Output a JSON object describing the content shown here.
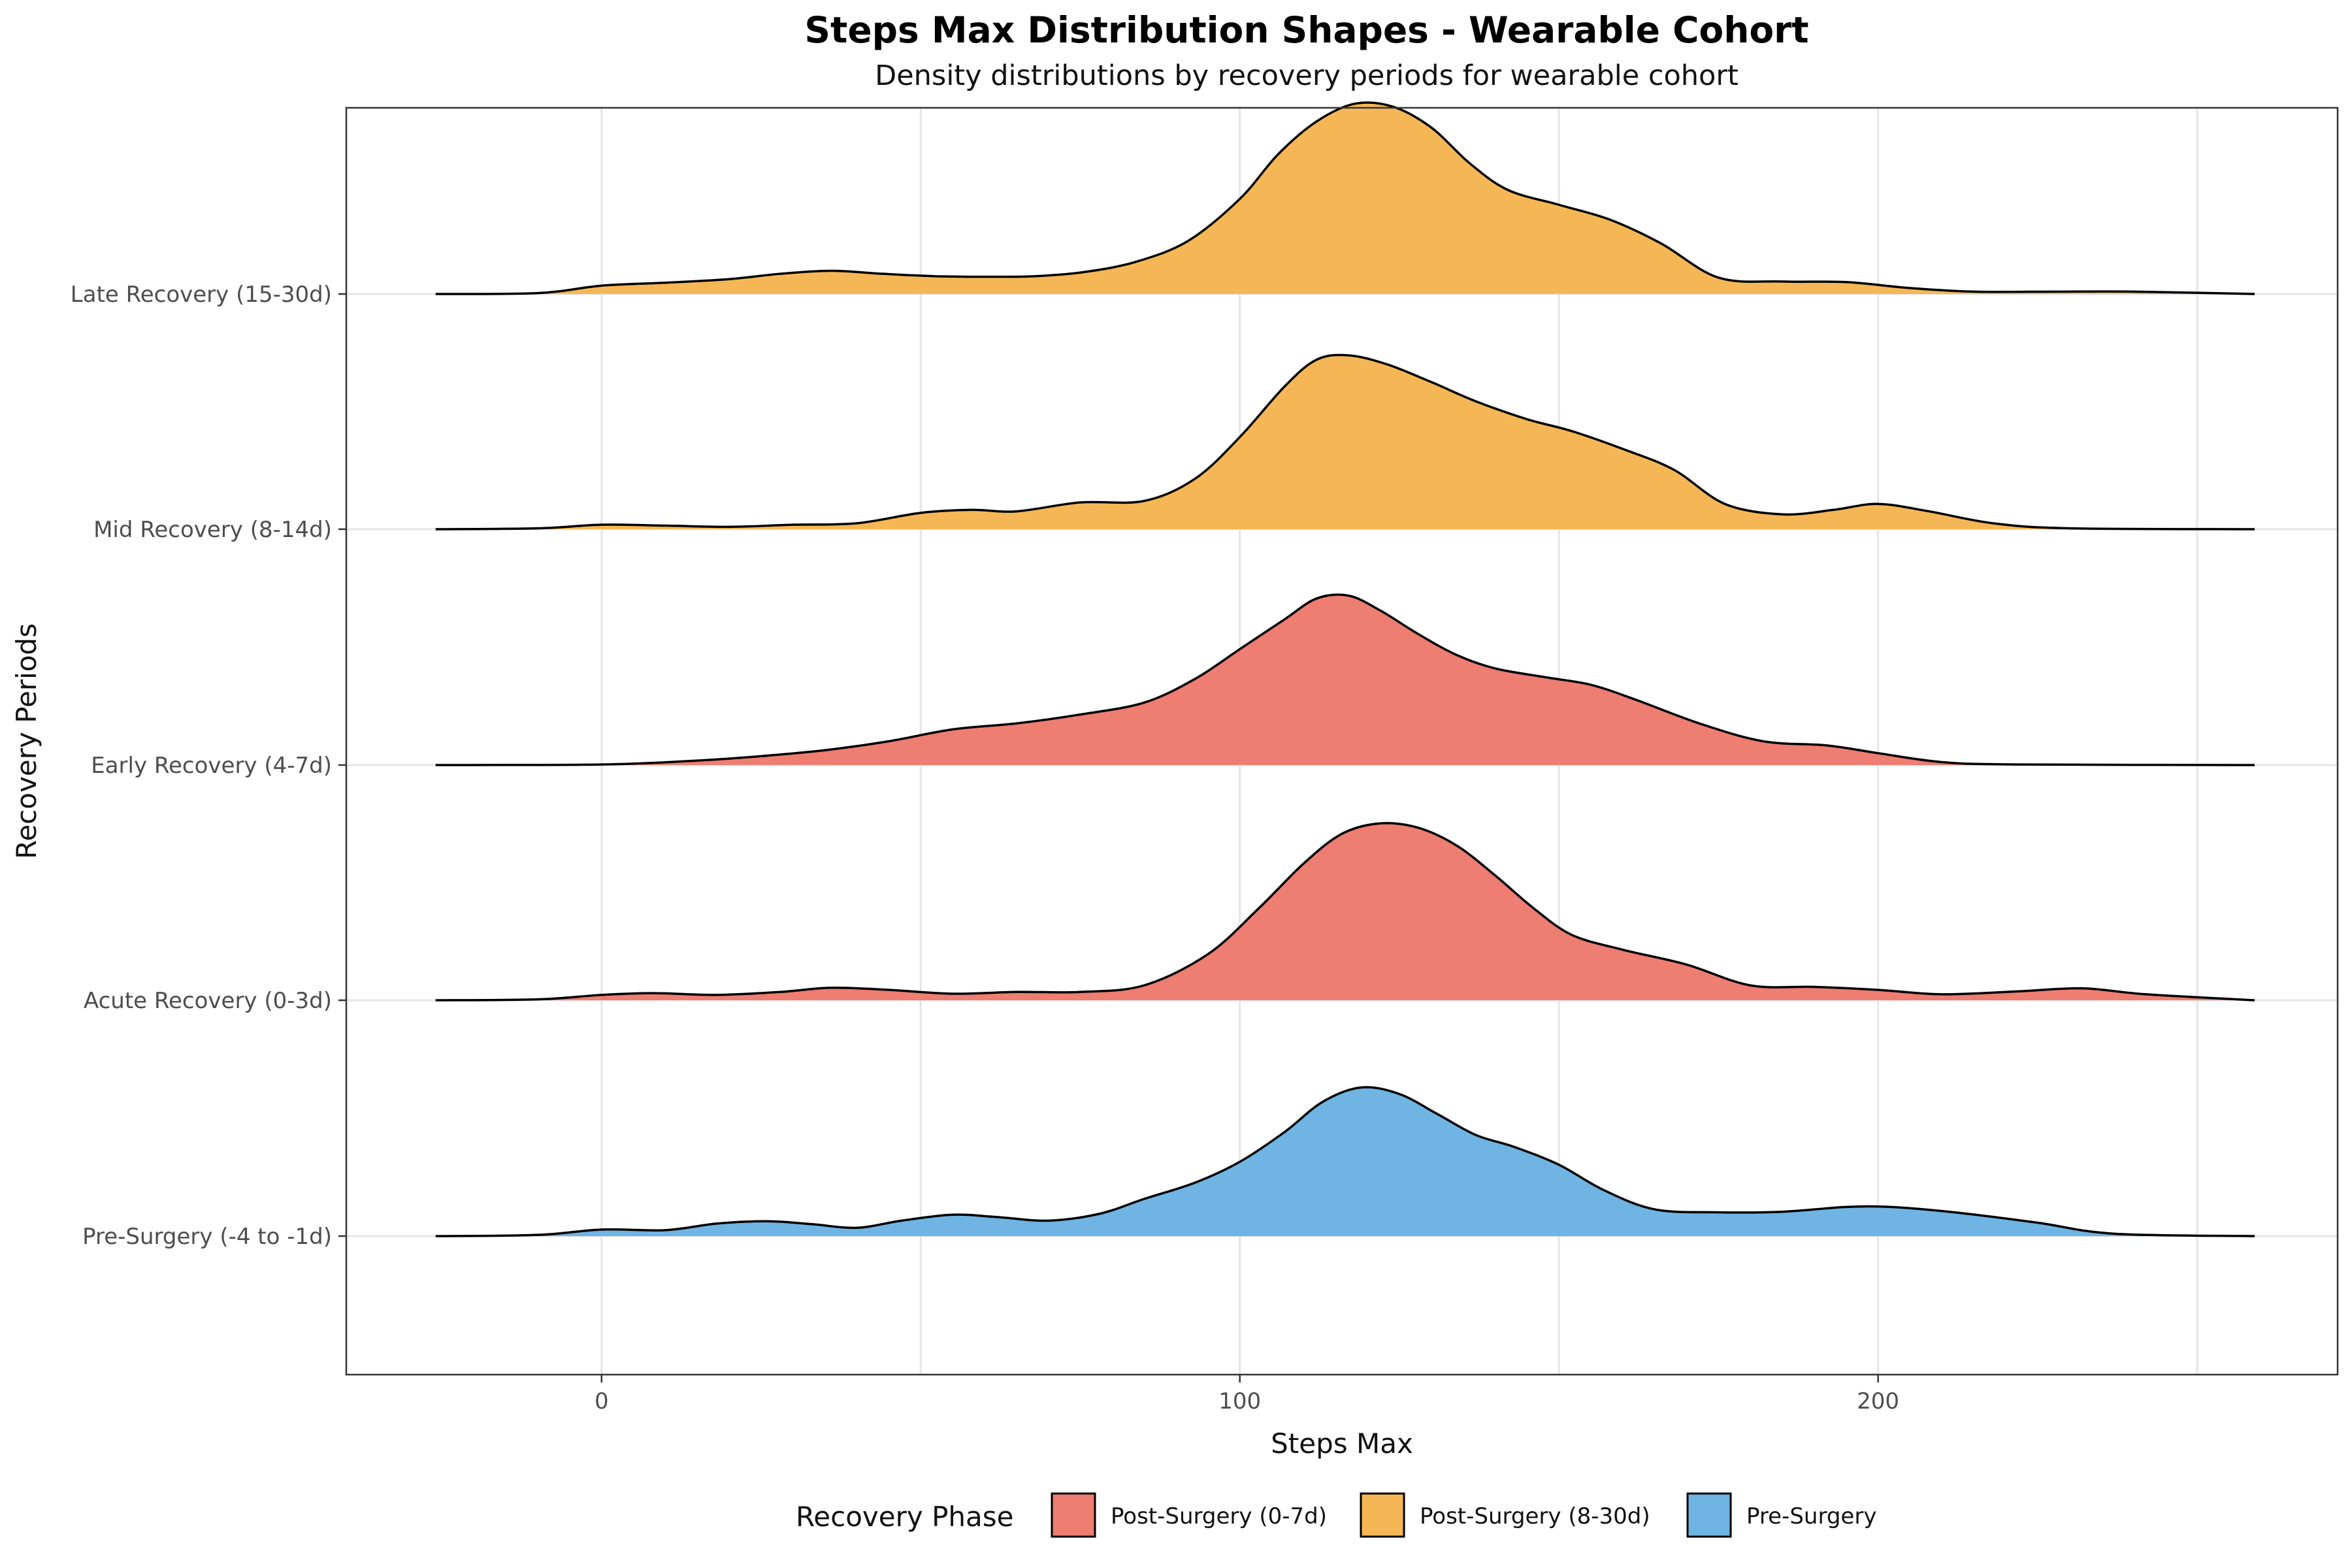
{
  "chart_data": {
    "type": "ridgeline",
    "title": "Steps Max Distribution Shapes - Wearable Cohort",
    "subtitle": "Density distributions by recovery periods for wearable cohort",
    "xlabel": "Steps Max",
    "ylabel": "Recovery Periods",
    "xlim": [
      -40,
      272
    ],
    "x_ticks": [
      0,
      100,
      200
    ],
    "x_tick_labels": [
      "0",
      "100",
      "200"
    ],
    "density_range": [
      -26,
      259
    ],
    "grid": true,
    "legend": {
      "title": "Recovery Phase",
      "position": "bottom",
      "entries": [
        {
          "label": "Post-Surgery (0-7d)",
          "color": "#EE7D72"
        },
        {
          "label": "Post-Surgery (8-30d)",
          "color": "#F5B756"
        },
        {
          "label": "Pre-Surgery",
          "color": "#6FB4E3"
        }
      ]
    },
    "series": [
      {
        "category": "Pre-Surgery (-4 to -1d)",
        "phase": "Pre-Surgery",
        "color": "#6FB4E3",
        "points": [
          [
            -26,
            0
          ],
          [
            -10,
            0.004
          ],
          [
            0,
            0.022
          ],
          [
            10,
            0.02
          ],
          [
            18,
            0.042
          ],
          [
            26,
            0.05
          ],
          [
            33,
            0.04
          ],
          [
            40,
            0.028
          ],
          [
            47,
            0.052
          ],
          [
            55,
            0.072
          ],
          [
            62,
            0.064
          ],
          [
            70,
            0.052
          ],
          [
            78,
            0.075
          ],
          [
            85,
            0.125
          ],
          [
            93,
            0.18
          ],
          [
            100,
            0.25
          ],
          [
            107,
            0.35
          ],
          [
            113,
            0.452
          ],
          [
            119,
            0.5
          ],
          [
            125,
            0.478
          ],
          [
            131,
            0.41
          ],
          [
            137,
            0.34
          ],
          [
            143,
            0.3
          ],
          [
            150,
            0.24
          ],
          [
            157,
            0.155
          ],
          [
            165,
            0.09
          ],
          [
            175,
            0.08
          ],
          [
            185,
            0.082
          ],
          [
            195,
            0.098
          ],
          [
            202,
            0.098
          ],
          [
            212,
            0.08
          ],
          [
            225,
            0.045
          ],
          [
            237,
            0.008
          ],
          [
            259,
            0
          ]
        ]
      },
      {
        "category": "Acute Recovery (0-3d)",
        "phase": "Post-Surgery (0-7d)",
        "color": "#EE7D72",
        "points": [
          [
            -26,
            0
          ],
          [
            -10,
            0.003
          ],
          [
            0,
            0.018
          ],
          [
            8,
            0.024
          ],
          [
            18,
            0.018
          ],
          [
            28,
            0.028
          ],
          [
            36,
            0.042
          ],
          [
            45,
            0.035
          ],
          [
            55,
            0.022
          ],
          [
            65,
            0.028
          ],
          [
            75,
            0.028
          ],
          [
            85,
            0.05
          ],
          [
            95,
            0.155
          ],
          [
            103,
            0.31
          ],
          [
            110,
            0.46
          ],
          [
            116,
            0.56
          ],
          [
            122,
            0.595
          ],
          [
            128,
            0.58
          ],
          [
            134,
            0.52
          ],
          [
            140,
            0.42
          ],
          [
            146,
            0.31
          ],
          [
            152,
            0.22
          ],
          [
            160,
            0.17
          ],
          [
            170,
            0.12
          ],
          [
            180,
            0.05
          ],
          [
            190,
            0.045
          ],
          [
            200,
            0.035
          ],
          [
            210,
            0.02
          ],
          [
            222,
            0.03
          ],
          [
            232,
            0.04
          ],
          [
            242,
            0.02
          ],
          [
            259,
            0
          ]
        ]
      },
      {
        "category": "Early Recovery (4-7d)",
        "phase": "Post-Surgery (0-7d)",
        "color": "#EE7D72",
        "points": [
          [
            -26,
            0
          ],
          [
            0,
            0.002
          ],
          [
            15,
            0.015
          ],
          [
            25,
            0.03
          ],
          [
            35,
            0.05
          ],
          [
            45,
            0.08
          ],
          [
            55,
            0.12
          ],
          [
            65,
            0.14
          ],
          [
            75,
            0.17
          ],
          [
            85,
            0.21
          ],
          [
            93,
            0.29
          ],
          [
            100,
            0.39
          ],
          [
            107,
            0.49
          ],
          [
            112,
            0.56
          ],
          [
            117,
            0.57
          ],
          [
            122,
            0.52
          ],
          [
            128,
            0.44
          ],
          [
            134,
            0.37
          ],
          [
            140,
            0.325
          ],
          [
            148,
            0.295
          ],
          [
            155,
            0.27
          ],
          [
            162,
            0.22
          ],
          [
            172,
            0.14
          ],
          [
            182,
            0.08
          ],
          [
            192,
            0.066
          ],
          [
            200,
            0.04
          ],
          [
            210,
            0.01
          ],
          [
            222,
            0.002
          ],
          [
            259,
            0
          ]
        ]
      },
      {
        "category": "Mid Recovery (8-14d)",
        "phase": "Post-Surgery (8-30d)",
        "color": "#F5B756",
        "points": [
          [
            -26,
            0
          ],
          [
            -10,
            0.003
          ],
          [
            0,
            0.015
          ],
          [
            10,
            0.012
          ],
          [
            20,
            0.008
          ],
          [
            30,
            0.015
          ],
          [
            40,
            0.02
          ],
          [
            50,
            0.055
          ],
          [
            58,
            0.065
          ],
          [
            65,
            0.06
          ],
          [
            75,
            0.09
          ],
          [
            85,
            0.095
          ],
          [
            93,
            0.17
          ],
          [
            100,
            0.31
          ],
          [
            107,
            0.48
          ],
          [
            112,
            0.57
          ],
          [
            117,
            0.585
          ],
          [
            123,
            0.555
          ],
          [
            130,
            0.495
          ],
          [
            137,
            0.43
          ],
          [
            145,
            0.37
          ],
          [
            152,
            0.33
          ],
          [
            160,
            0.27
          ],
          [
            168,
            0.2
          ],
          [
            176,
            0.085
          ],
          [
            185,
            0.05
          ],
          [
            193,
            0.065
          ],
          [
            200,
            0.085
          ],
          [
            208,
            0.06
          ],
          [
            218,
            0.02
          ],
          [
            230,
            0.003
          ],
          [
            259,
            0
          ]
        ]
      },
      {
        "category": "Late Recovery (15-30d)",
        "phase": "Post-Surgery (8-30d)",
        "color": "#F5B756",
        "points": [
          [
            -26,
            0
          ],
          [
            -10,
            0.003
          ],
          [
            0,
            0.028
          ],
          [
            10,
            0.038
          ],
          [
            20,
            0.05
          ],
          [
            28,
            0.068
          ],
          [
            36,
            0.078
          ],
          [
            44,
            0.068
          ],
          [
            52,
            0.06
          ],
          [
            60,
            0.058
          ],
          [
            68,
            0.06
          ],
          [
            76,
            0.075
          ],
          [
            84,
            0.11
          ],
          [
            92,
            0.18
          ],
          [
            100,
            0.32
          ],
          [
            106,
            0.47
          ],
          [
            112,
            0.58
          ],
          [
            118,
            0.64
          ],
          [
            124,
            0.63
          ],
          [
            130,
            0.56
          ],
          [
            136,
            0.44
          ],
          [
            142,
            0.35
          ],
          [
            150,
            0.3
          ],
          [
            158,
            0.25
          ],
          [
            166,
            0.17
          ],
          [
            175,
            0.055
          ],
          [
            185,
            0.042
          ],
          [
            195,
            0.04
          ],
          [
            205,
            0.02
          ],
          [
            215,
            0.008
          ],
          [
            228,
            0.008
          ],
          [
            240,
            0.008
          ],
          [
            259,
            0
          ]
        ]
      }
    ]
  }
}
